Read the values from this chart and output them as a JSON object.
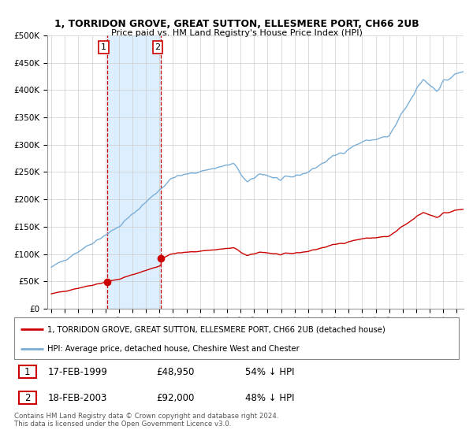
{
  "title": "1, TORRIDON GROVE, GREAT SUTTON, ELLESMERE PORT, CH66 2UB",
  "subtitle": "Price paid vs. HM Land Registry's House Price Index (HPI)",
  "legend_line1": "1, TORRIDON GROVE, GREAT SUTTON, ELLESMERE PORT, CH66 2UB (detached house)",
  "legend_line2": "HPI: Average price, detached house, Cheshire West and Chester",
  "table_row1": [
    "1",
    "17-FEB-1999",
    "£48,950",
    "54% ↓ HPI"
  ],
  "table_row2": [
    "2",
    "18-FEB-2003",
    "£92,000",
    "48% ↓ HPI"
  ],
  "footnote": "Contains HM Land Registry data © Crown copyright and database right 2024.\nThis data is licensed under the Open Government Licence v3.0.",
  "sale1_year": 1999.12,
  "sale1_price": 48950,
  "sale2_year": 2003.12,
  "sale2_price": 92000,
  "hpi_color": "#7aaed6",
  "price_color": "#cc0000",
  "vline_color": "#cc0000",
  "shade_color": "#ddeeff",
  "ylim": [
    0,
    500000
  ],
  "yticks": [
    0,
    50000,
    100000,
    150000,
    200000,
    250000,
    300000,
    350000,
    400000,
    450000,
    500000
  ],
  "xlim_start": 1994.7,
  "xlim_end": 2025.5,
  "background": "#ffffff",
  "grid_color": "#cccccc",
  "n_points": 370
}
